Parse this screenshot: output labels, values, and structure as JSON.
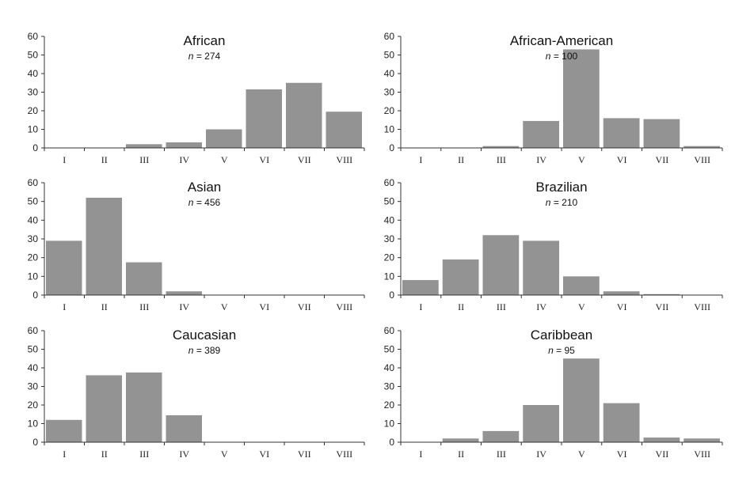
{
  "colors": {
    "bar": "#939393",
    "axis": "#333333",
    "text": "#222222"
  },
  "chart_data": [
    {
      "type": "bar",
      "title": "African",
      "subtitle": {
        "n_label": "n",
        "n_rest": " = 274"
      },
      "categories": [
        "I",
        "II",
        "III",
        "IV",
        "V",
        "VI",
        "VII",
        "VIII"
      ],
      "values": [
        0,
        0,
        2,
        3,
        10,
        31.5,
        35,
        19.5
      ],
      "yticks": [
        0,
        10,
        20,
        30,
        40,
        50,
        60
      ],
      "ylim": [
        0,
        60
      ],
      "xlabel": "",
      "ylabel": ""
    },
    {
      "type": "bar",
      "title": "African-American",
      "subtitle": {
        "n_label": "n",
        "n_rest": " = 100"
      },
      "categories": [
        "I",
        "II",
        "III",
        "IV",
        "V",
        "VI",
        "VII",
        "VIII"
      ],
      "values": [
        0,
        0,
        1,
        14.5,
        53,
        16,
        15.5,
        1
      ],
      "yticks": [
        0,
        10,
        20,
        30,
        40,
        50,
        60
      ],
      "ylim": [
        0,
        60
      ],
      "xlabel": "",
      "ylabel": ""
    },
    {
      "type": "bar",
      "title": "Asian",
      "subtitle": {
        "n_label": "n",
        "n_rest": " = 456"
      },
      "categories": [
        "I",
        "II",
        "III",
        "IV",
        "V",
        "VI",
        "VII",
        "VIII"
      ],
      "values": [
        29,
        52,
        17.5,
        2,
        0,
        0,
        0,
        0
      ],
      "yticks": [
        0,
        10,
        20,
        30,
        40,
        50,
        60
      ],
      "ylim": [
        0,
        60
      ],
      "xlabel": "",
      "ylabel": ""
    },
    {
      "type": "bar",
      "title": "Brazilian",
      "subtitle": {
        "n_label": "n",
        "n_rest": " = 210"
      },
      "categories": [
        "I",
        "II",
        "III",
        "IV",
        "V",
        "VI",
        "VII",
        "VIII"
      ],
      "values": [
        8,
        19,
        32,
        29,
        10,
        2,
        0.5,
        0
      ],
      "yticks": [
        0,
        10,
        20,
        30,
        40,
        50,
        60
      ],
      "ylim": [
        0,
        60
      ],
      "xlabel": "",
      "ylabel": ""
    },
    {
      "type": "bar",
      "title": "Caucasian",
      "subtitle": {
        "n_label": "n",
        "n_rest": " = 389"
      },
      "categories": [
        "I",
        "II",
        "III",
        "IV",
        "V",
        "VI",
        "VII",
        "VIII"
      ],
      "values": [
        12,
        36,
        37.5,
        14.5,
        0,
        0,
        0,
        0
      ],
      "yticks": [
        0,
        10,
        20,
        30,
        40,
        50,
        60
      ],
      "ylim": [
        0,
        60
      ],
      "xlabel": "",
      "ylabel": ""
    },
    {
      "type": "bar",
      "title": "Caribbean",
      "subtitle": {
        "n_label": "n",
        "n_rest": " = 95"
      },
      "categories": [
        "I",
        "II",
        "III",
        "IV",
        "V",
        "VI",
        "VII",
        "VIII"
      ],
      "values": [
        0,
        2,
        6,
        20,
        45,
        21,
        2.5,
        2
      ],
      "yticks": [
        0,
        10,
        20,
        30,
        40,
        50,
        60
      ],
      "ylim": [
        0,
        60
      ],
      "xlabel": "",
      "ylabel": ""
    }
  ]
}
